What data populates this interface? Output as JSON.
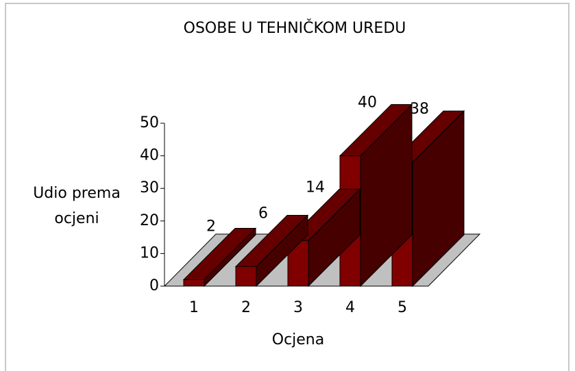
{
  "chart_data": {
    "type": "bar3d",
    "title": "OSOBE U TEHNIČKOM UREDU",
    "categories": [
      "1",
      "2",
      "3",
      "4",
      "5"
    ],
    "values": [
      2,
      6,
      14,
      40,
      38
    ],
    "color": "#800000",
    "ylim": [
      0,
      50
    ],
    "yticks": [
      0,
      10,
      20,
      30,
      40,
      50
    ],
    "y_label": [
      "Udio prema",
      "ocjeni"
    ],
    "x_label": "Ocjena"
  }
}
